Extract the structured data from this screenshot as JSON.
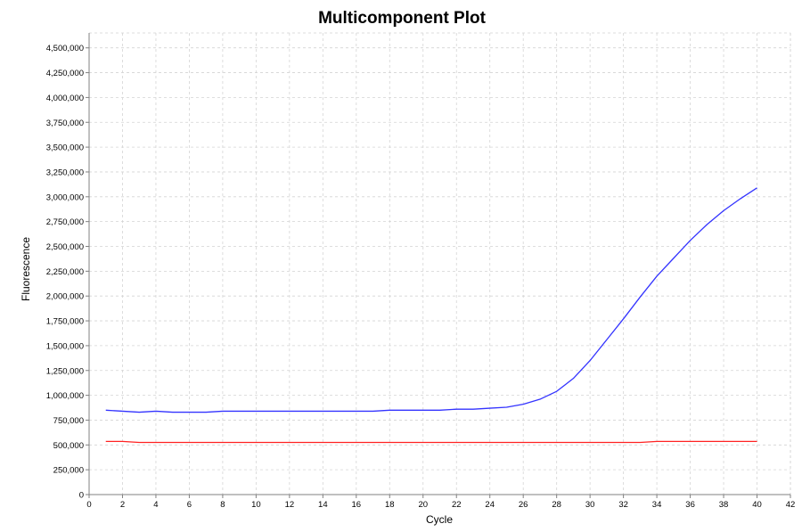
{
  "chart_data": {
    "type": "line",
    "title": "Multicomponent Plot",
    "xlabel": "Cycle",
    "ylabel": "Fluorescence",
    "xlim": [
      0,
      42
    ],
    "ylim": [
      0,
      4650000
    ],
    "grid": true,
    "x_ticks": [
      0,
      2,
      4,
      6,
      8,
      10,
      12,
      14,
      16,
      18,
      20,
      22,
      24,
      26,
      28,
      30,
      32,
      34,
      36,
      38,
      40,
      42
    ],
    "x_tick_labels": [
      "0",
      "2",
      "4",
      "6",
      "8",
      "10",
      "12",
      "14",
      "16",
      "18",
      "20",
      "22",
      "24",
      "26",
      "28",
      "30",
      "32",
      "34",
      "36",
      "38",
      "40",
      "42"
    ],
    "y_ticks": [
      0,
      250000,
      500000,
      750000,
      1000000,
      1250000,
      1500000,
      1750000,
      2000000,
      2250000,
      2500000,
      2750000,
      3000000,
      3250000,
      3500000,
      3750000,
      4000000,
      4250000,
      4500000
    ],
    "y_tick_labels": [
      "0",
      "250,000",
      "500,000",
      "750,000",
      "1,000,000",
      "1,250,000",
      "1,500,000",
      "1,750,000",
      "2,000,000",
      "2,250,000",
      "2,500,000",
      "2,750,000",
      "3,000,000",
      "3,250,000",
      "3,500,000",
      "3,750,000",
      "4,000,000",
      "4,250,000",
      "4,500,000"
    ],
    "x": [
      1,
      2,
      3,
      4,
      5,
      6,
      7,
      8,
      9,
      10,
      11,
      12,
      13,
      14,
      15,
      16,
      17,
      18,
      19,
      20,
      21,
      22,
      23,
      24,
      25,
      26,
      27,
      28,
      29,
      30,
      31,
      32,
      33,
      34,
      35,
      36,
      37,
      38,
      39,
      40
    ],
    "series": [
      {
        "color": "#3333ff",
        "values": [
          850000,
          840000,
          830000,
          840000,
          830000,
          830000,
          830000,
          840000,
          840000,
          840000,
          840000,
          840000,
          840000,
          840000,
          840000,
          840000,
          840000,
          850000,
          850000,
          850000,
          850000,
          860000,
          860000,
          870000,
          880000,
          910000,
          960000,
          1040000,
          1170000,
          1350000,
          1560000,
          1770000,
          1990000,
          2200000,
          2380000,
          2560000,
          2720000,
          2860000,
          2980000,
          3090000
        ]
      },
      {
        "color": "#ff2222",
        "values": [
          535000,
          535000,
          525000,
          525000,
          525000,
          525000,
          525000,
          525000,
          525000,
          525000,
          525000,
          525000,
          525000,
          525000,
          525000,
          525000,
          525000,
          525000,
          525000,
          525000,
          525000,
          525000,
          525000,
          525000,
          525000,
          525000,
          525000,
          525000,
          525000,
          525000,
          525000,
          525000,
          525000,
          535000,
          535000,
          535000,
          535000,
          535000,
          535000,
          535000
        ]
      }
    ]
  }
}
